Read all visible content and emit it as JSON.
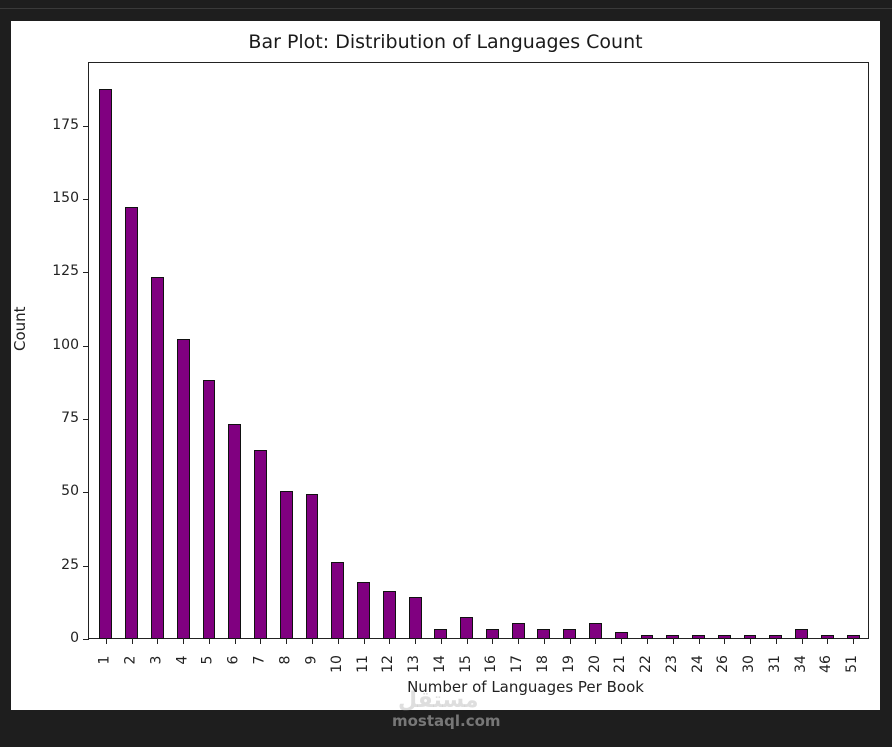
{
  "chart_data": {
    "type": "bar",
    "title": "Bar Plot: Distribution of Languages Count",
    "xlabel": "Number of Languages Per Book",
    "ylabel": "Count",
    "ylim": [
      0,
      196
    ],
    "yticks": [
      0,
      25,
      50,
      75,
      100,
      125,
      150,
      175
    ],
    "grid": false,
    "legend": null,
    "bar_color": "#800080",
    "edge_color": "#000000",
    "categories": [
      "1",
      "2",
      "3",
      "4",
      "5",
      "6",
      "7",
      "8",
      "9",
      "10",
      "11",
      "12",
      "13",
      "14",
      "15",
      "16",
      "17",
      "18",
      "19",
      "20",
      "21",
      "22",
      "23",
      "24",
      "26",
      "30",
      "31",
      "34",
      "46",
      "51"
    ],
    "values": [
      187,
      147,
      123,
      102,
      88,
      73,
      64,
      50,
      49,
      26,
      19,
      16,
      14,
      3,
      7,
      3,
      5,
      3,
      3,
      5,
      2,
      1,
      1,
      1,
      1,
      1,
      1,
      3,
      1,
      1
    ]
  },
  "watermark": {
    "logo_text": "مستقل",
    "text": "mostaql.com"
  }
}
